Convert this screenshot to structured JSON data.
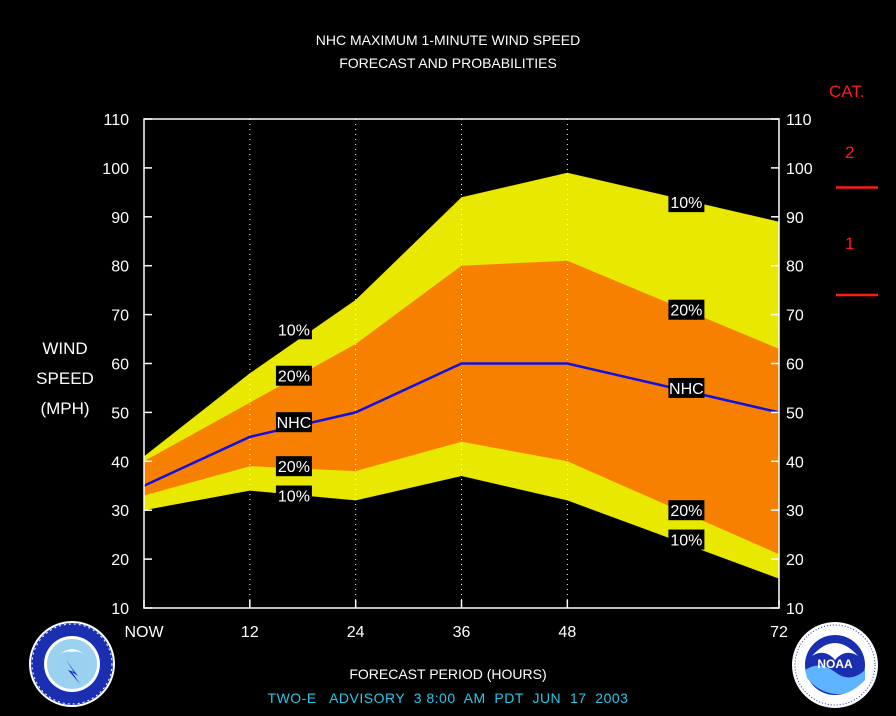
{
  "title_line1": "NHC MAXIMUM 1-MINUTE WIND SPEED",
  "title_line2": "FORECAST AND PROBABILITIES",
  "y_label": [
    "WIND",
    "SPEED",
    "(MPH)"
  ],
  "category_header": "CAT.",
  "categories": [
    "2",
    "1"
  ],
  "footer": "TWO-E   ADVISORY  3 8:00  AM  PDT  JUN  17  2003",
  "colors": {
    "outer_band": "#e8e800",
    "inner_band": "#f88000",
    "nhc_line": "#1010e0",
    "grid": "#ffffff",
    "category_marks": "#ff1a1a",
    "footer_text": "#28c8e8"
  },
  "chart_data": {
    "type": "area",
    "title": "NHC MAXIMUM 1-MINUTE WIND SPEED FORECAST AND PROBABILITIES",
    "xlabel": "FORECAST PERIOD (HOURS)",
    "ylabel": "WIND SPEED (MPH)",
    "x": [
      0,
      12,
      24,
      36,
      48,
      72
    ],
    "x_tick_labels": [
      "NOW",
      "12",
      "24",
      "36",
      "48",
      "72"
    ],
    "ylim": [
      10,
      110
    ],
    "y_ticks": [
      10,
      20,
      30,
      40,
      50,
      60,
      70,
      80,
      90,
      100,
      110
    ],
    "series": [
      {
        "name": "10%",
        "bound": "upper",
        "values": [
          41,
          58,
          73,
          94,
          99,
          89
        ]
      },
      {
        "name": "20%",
        "bound": "upper",
        "values": [
          40,
          52,
          64,
          80,
          81,
          63
        ]
      },
      {
        "name": "NHC",
        "values": [
          35,
          45,
          50,
          60,
          60,
          50
        ]
      },
      {
        "name": "20%",
        "bound": "lower",
        "values": [
          33,
          39,
          38,
          44,
          40,
          21
        ]
      },
      {
        "name": "10%",
        "bound": "lower",
        "values": [
          30,
          34,
          32,
          37,
          32,
          16
        ]
      }
    ],
    "labels": [
      {
        "text": "10%",
        "x": 17,
        "y": 67
      },
      {
        "text": "20%",
        "x": 17,
        "y": 57.5
      },
      {
        "text": "NHC",
        "x": 17,
        "y": 48
      },
      {
        "text": "20%",
        "x": 17,
        "y": 39
      },
      {
        "text": "10%",
        "x": 17,
        "y": 33
      },
      {
        "text": "10%",
        "x": 61.5,
        "y": 93
      },
      {
        "text": "20%",
        "x": 61.5,
        "y": 71
      },
      {
        "text": "NHC",
        "x": 61.5,
        "y": 55
      },
      {
        "text": "20%",
        "x": 61.5,
        "y": 30
      },
      {
        "text": "10%",
        "x": 61.5,
        "y": 24
      }
    ],
    "category_thresholds": [
      74,
      96
    ],
    "grid": "dotted vertical"
  }
}
